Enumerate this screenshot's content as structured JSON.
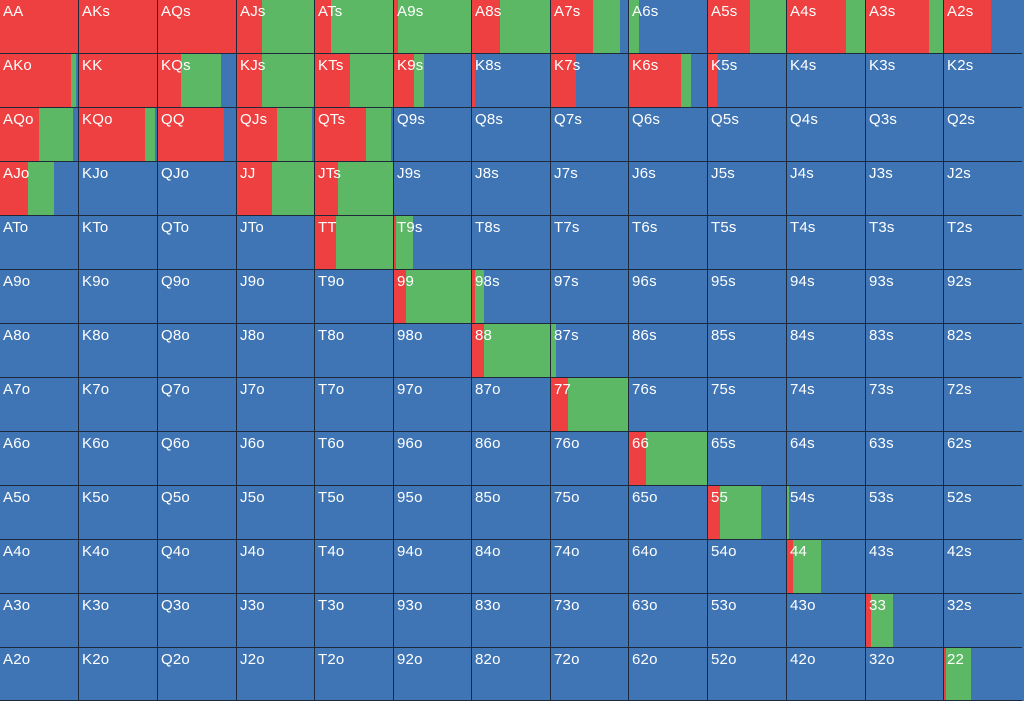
{
  "legend_colors": {
    "raise": "#ee4040",
    "call": "#5cb864",
    "fold": "#3f75b4"
  },
  "rows": [
    [
      "AA",
      "AKs",
      "AQs",
      "AJs",
      "ATs",
      "A9s",
      "A8s",
      "A7s",
      "A6s",
      "A5s",
      "A4s",
      "A3s",
      "A2s"
    ],
    [
      "AKo",
      "KK",
      "KQs",
      "KJs",
      "KTs",
      "K9s",
      "K8s",
      "K7s",
      "K6s",
      "K5s",
      "K4s",
      "K3s",
      "K2s"
    ],
    [
      "AQo",
      "KQo",
      "QQ",
      "QJs",
      "QTs",
      "Q9s",
      "Q8s",
      "Q7s",
      "Q6s",
      "Q5s",
      "Q4s",
      "Q3s",
      "Q2s"
    ],
    [
      "AJo",
      "KJo",
      "QJo",
      "JJ",
      "JTs",
      "J9s",
      "J8s",
      "J7s",
      "J6s",
      "J5s",
      "J4s",
      "J3s",
      "J2s"
    ],
    [
      "ATo",
      "KTo",
      "QTo",
      "JTo",
      "TT",
      "T9s",
      "T8s",
      "T7s",
      "T6s",
      "T5s",
      "T4s",
      "T3s",
      "T2s"
    ],
    [
      "A9o",
      "K9o",
      "Q9o",
      "J9o",
      "T9o",
      "99",
      "98s",
      "97s",
      "96s",
      "95s",
      "94s",
      "93s",
      "92s"
    ],
    [
      "A8o",
      "K8o",
      "Q8o",
      "J8o",
      "T8o",
      "98o",
      "88",
      "87s",
      "86s",
      "85s",
      "84s",
      "83s",
      "82s"
    ],
    [
      "A7o",
      "K7o",
      "Q7o",
      "J7o",
      "T7o",
      "97o",
      "87o",
      "77",
      "76s",
      "75s",
      "74s",
      "73s",
      "72s"
    ],
    [
      "A6o",
      "K6o",
      "Q6o",
      "J6o",
      "T6o",
      "96o",
      "86o",
      "76o",
      "66",
      "65s",
      "64s",
      "63s",
      "62s"
    ],
    [
      "A5o",
      "K5o",
      "Q5o",
      "J5o",
      "T5o",
      "95o",
      "85o",
      "75o",
      "65o",
      "55",
      "54s",
      "53s",
      "52s"
    ],
    [
      "A4o",
      "K4o",
      "Q4o",
      "J4o",
      "T4o",
      "94o",
      "84o",
      "74o",
      "64o",
      "54o",
      "44",
      "43s",
      "42s"
    ],
    [
      "A3o",
      "K3o",
      "Q3o",
      "J3o",
      "T3o",
      "93o",
      "83o",
      "73o",
      "63o",
      "53o",
      "43o",
      "33",
      "32s"
    ],
    [
      "A2o",
      "K2o",
      "Q2o",
      "J2o",
      "T2o",
      "92o",
      "82o",
      "72o",
      "62o",
      "52o",
      "42o",
      "32o",
      "22"
    ]
  ],
  "frequencies": {
    "AA": {
      "raise": 1.0,
      "call": 0.0
    },
    "AKs": {
      "raise": 1.0,
      "call": 0.0
    },
    "AQs": {
      "raise": 1.0,
      "call": 0.0
    },
    "AJs": {
      "raise": 0.33,
      "call": 0.67
    },
    "ATs": {
      "raise": 0.2,
      "call": 0.8
    },
    "A9s": {
      "raise": 0.05,
      "call": 0.95
    },
    "A8s": {
      "raise": 0.36,
      "call": 0.64
    },
    "A7s": {
      "raise": 0.55,
      "call": 0.35
    },
    "A6s": {
      "raise": 0.0,
      "call": 0.13
    },
    "A5s": {
      "raise": 0.54,
      "call": 0.46
    },
    "A4s": {
      "raise": 0.75,
      "call": 0.25
    },
    "A3s": {
      "raise": 0.82,
      "call": 0.18
    },
    "A2s": {
      "raise": 0.6,
      "call": 0.0
    },
    "AKo": {
      "raise": 0.91,
      "call": 0.06
    },
    "KK": {
      "raise": 1.0,
      "call": 0.0
    },
    "KQs": {
      "raise": 0.29,
      "call": 0.52
    },
    "KJs": {
      "raise": 0.33,
      "call": 0.67
    },
    "KTs": {
      "raise": 0.45,
      "call": 0.55
    },
    "K9s": {
      "raise": 0.26,
      "call": 0.13
    },
    "K8s": {
      "raise": 0.04,
      "call": 0.0
    },
    "K7s": {
      "raise": 0.32,
      "call": 0.0
    },
    "K6s": {
      "raise": 0.67,
      "call": 0.13
    },
    "K5s": {
      "raise": 0.12,
      "call": 0.0
    },
    "AQo": {
      "raise": 0.5,
      "call": 0.44
    },
    "KQo": {
      "raise": 0.85,
      "call": 0.13
    },
    "QQ": {
      "raise": 0.85,
      "call": 0.0
    },
    "QJs": {
      "raise": 0.52,
      "call": 0.46
    },
    "QTs": {
      "raise": 0.65,
      "call": 0.33
    },
    "AJo": {
      "raise": 0.36,
      "call": 0.33
    },
    "JJ": {
      "raise": 0.45,
      "call": 0.55
    },
    "JTs": {
      "raise": 0.29,
      "call": 0.71
    },
    "TT": {
      "raise": 0.27,
      "call": 0.73
    },
    "T9s": {
      "raise": 0.03,
      "call": 0.22
    },
    "99": {
      "raise": 0.15,
      "call": 0.85
    },
    "98s": {
      "raise": 0.04,
      "call": 0.12
    },
    "88": {
      "raise": 0.16,
      "call": 0.84
    },
    "87s": {
      "raise": 0.0,
      "call": 0.06
    },
    "77": {
      "raise": 0.22,
      "call": 0.78
    },
    "66": {
      "raise": 0.22,
      "call": 0.78
    },
    "55": {
      "raise": 0.15,
      "call": 0.53
    },
    "54s": {
      "raise": 0.0,
      "call": 0.03
    },
    "44": {
      "raise": 0.08,
      "call": 0.36
    },
    "33": {
      "raise": 0.06,
      "call": 0.29
    },
    "22": {
      "raise": 0.03,
      "call": 0.32
    }
  }
}
